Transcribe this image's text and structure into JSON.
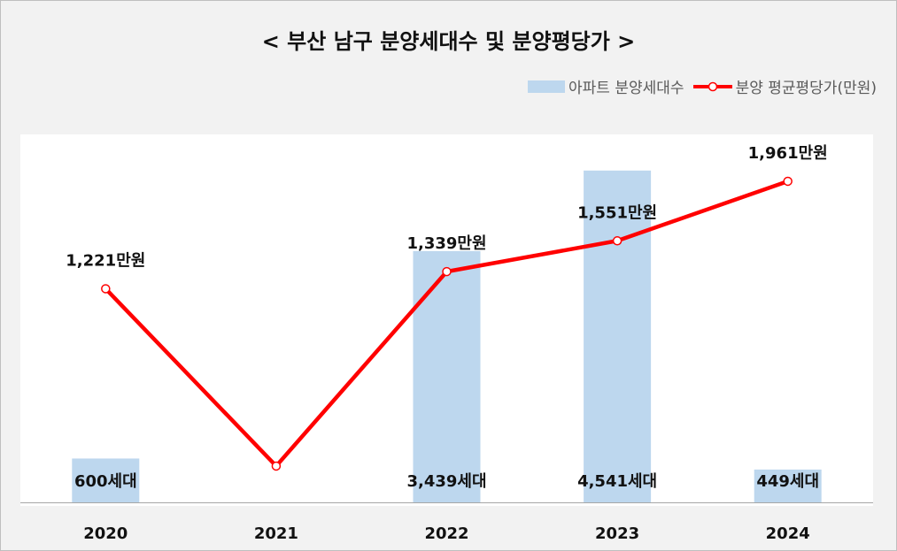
{
  "chart_data": {
    "type": "bar",
    "title": "< 부산 남구 분양세대수 및 분양평당가 >",
    "categories": [
      "2020",
      "2021",
      "2022",
      "2023",
      "2024"
    ],
    "series": [
      {
        "name": "아파트 분양세대수",
        "type": "bar",
        "values": [
          600,
          0,
          3439,
          4541,
          449
        ],
        "labels": [
          "600세대",
          "",
          "3,439세대",
          "4,541세대",
          "449세대"
        ]
      },
      {
        "name": "분양 평균평당가(만원)",
        "type": "line",
        "values": [
          1221,
          0,
          1339,
          1551,
          1961
        ],
        "labels": [
          "1,221만원",
          "",
          "1,339만원",
          "1,551만원",
          "1,961만원"
        ]
      }
    ],
    "legend_position": "top-right",
    "grid": false,
    "colors": {
      "bar": "#bdd7ee",
      "line": "#ff0000",
      "marker_fill": "#ffffff"
    }
  }
}
